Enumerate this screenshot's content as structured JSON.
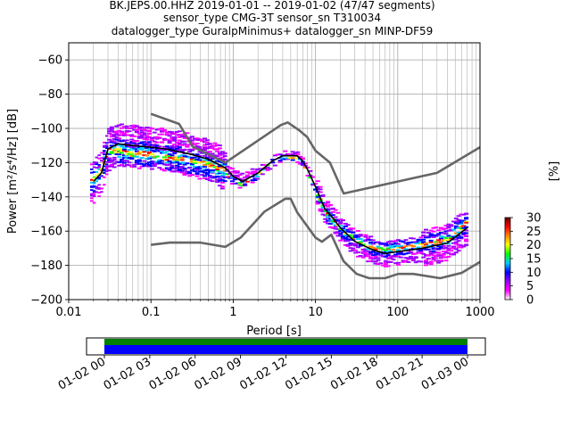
{
  "chart_data": {
    "type": "heatmap",
    "title_lines": [
      "BK.JEPS.00.HHZ   2019-01-01 -- 2019-01-02  (47/47 segments)",
      "sensor_type CMG-3T sensor_sn T310034",
      "datalogger_type GuralpMinimus+ datalogger_sn MINP-DF59"
    ],
    "xlabel": "Period [s]",
    "ylabel": "Power [m²/s⁴/Hz] [dB]",
    "xscale": "log",
    "xlim": [
      0.01,
      1000
    ],
    "ylim": [
      -200,
      -50
    ],
    "x_ticks": [
      0.01,
      0.1,
      1,
      10,
      100,
      1000
    ],
    "x_tick_labels": [
      "0.01",
      "0.1",
      "1",
      "10",
      "100",
      "1000"
    ],
    "y_ticks": [
      -200,
      -180,
      -160,
      -140,
      -120,
      -100,
      -80,
      -60
    ],
    "y_tick_labels": [
      "−200",
      "−180",
      "−160",
      "−140",
      "−120",
      "−100",
      "−80",
      "−60"
    ],
    "grid": true,
    "nhnm": {
      "name": "NHNM",
      "x": [
        0.1,
        0.22,
        0.32,
        0.8,
        3.8,
        4.6,
        6.3,
        7.9,
        10,
        15,
        22,
        300,
        1000
      ],
      "y": [
        -91.5,
        -97.4,
        -110.5,
        -120,
        -98,
        -96.5,
        -101,
        -105,
        -113,
        -120,
        -138,
        -126,
        -111
      ]
    },
    "nlnm": {
      "name": "NLNM",
      "x": [
        0.1,
        0.17,
        0.4,
        0.8,
        1.24,
        2.4,
        4.3,
        5,
        6,
        10,
        12,
        15.6,
        21.9,
        31.6,
        45,
        70,
        101,
        154,
        328,
        600,
        1000
      ],
      "y": [
        -168,
        -166.7,
        -166.7,
        -169.2,
        -163.7,
        -148.6,
        -141.1,
        -141.1,
        -149,
        -163.8,
        -166.2,
        -162.1,
        -177.5,
        -185,
        -187.5,
        -187.5,
        -185,
        -185,
        -187.5,
        -184.4,
        -178
      ]
    },
    "mode": {
      "name": "mode",
      "x": [
        0.02,
        0.025,
        0.03,
        0.04,
        0.06,
        0.1,
        0.15,
        0.3,
        0.5,
        0.8,
        1,
        1.3,
        2,
        3,
        4,
        5,
        6,
        7,
        8,
        10,
        13,
        16,
        20,
        30,
        50,
        70,
        100,
        200,
        400,
        700
      ],
      "y": [
        -130,
        -125,
        -113,
        -113,
        -115,
        -115,
        -117,
        -119,
        -121,
        -125,
        -130,
        -133,
        -127,
        -119,
        -117,
        -117,
        -117,
        -120,
        -125,
        -135,
        -148,
        -153,
        -158,
        -165,
        -170,
        -171,
        -170,
        -168,
        -165,
        -155
      ]
    },
    "mean": {
      "name": "mean",
      "x": [
        0.02,
        0.025,
        0.03,
        0.04,
        0.06,
        0.1,
        0.15,
        0.3,
        0.5,
        0.8,
        1,
        1.3,
        2,
        3,
        4,
        5,
        6,
        7,
        8,
        10,
        13,
        16,
        20,
        30,
        50,
        70,
        100,
        200,
        400,
        700
      ],
      "y": [
        -131,
        -126,
        -112,
        -109,
        -110,
        -111,
        -112,
        -115,
        -118,
        -123,
        -128,
        -131,
        -126,
        -119,
        -116,
        -116,
        -116,
        -119,
        -124,
        -134,
        -147,
        -152,
        -158,
        -166,
        -171,
        -173,
        -172,
        -170,
        -167,
        -158
      ]
    },
    "colorbar": {
      "label": "[%]",
      "min": 0,
      "max": 30,
      "ticks": [
        0,
        5,
        10,
        15,
        20,
        25,
        30
      ],
      "tick_labels": [
        "0",
        "5",
        "10",
        "15",
        "20",
        "25",
        "30"
      ],
      "colors": [
        "#ffffff",
        "#ff00ff",
        "#9900ff",
        "#0000ff",
        "#00ccff",
        "#00ff00",
        "#ffff00",
        "#ff8800",
        "#ff0000",
        "#660000"
      ]
    },
    "coverage": {
      "x_tick_labels": [
        "01-02 00",
        "01-02 03",
        "01-02 06",
        "01-02 09",
        "01-02 12",
        "01-02 15",
        "01-02 18",
        "01-02 21",
        "01-03 00"
      ],
      "bar_colors": [
        "#008000",
        "#0000ff"
      ]
    }
  }
}
